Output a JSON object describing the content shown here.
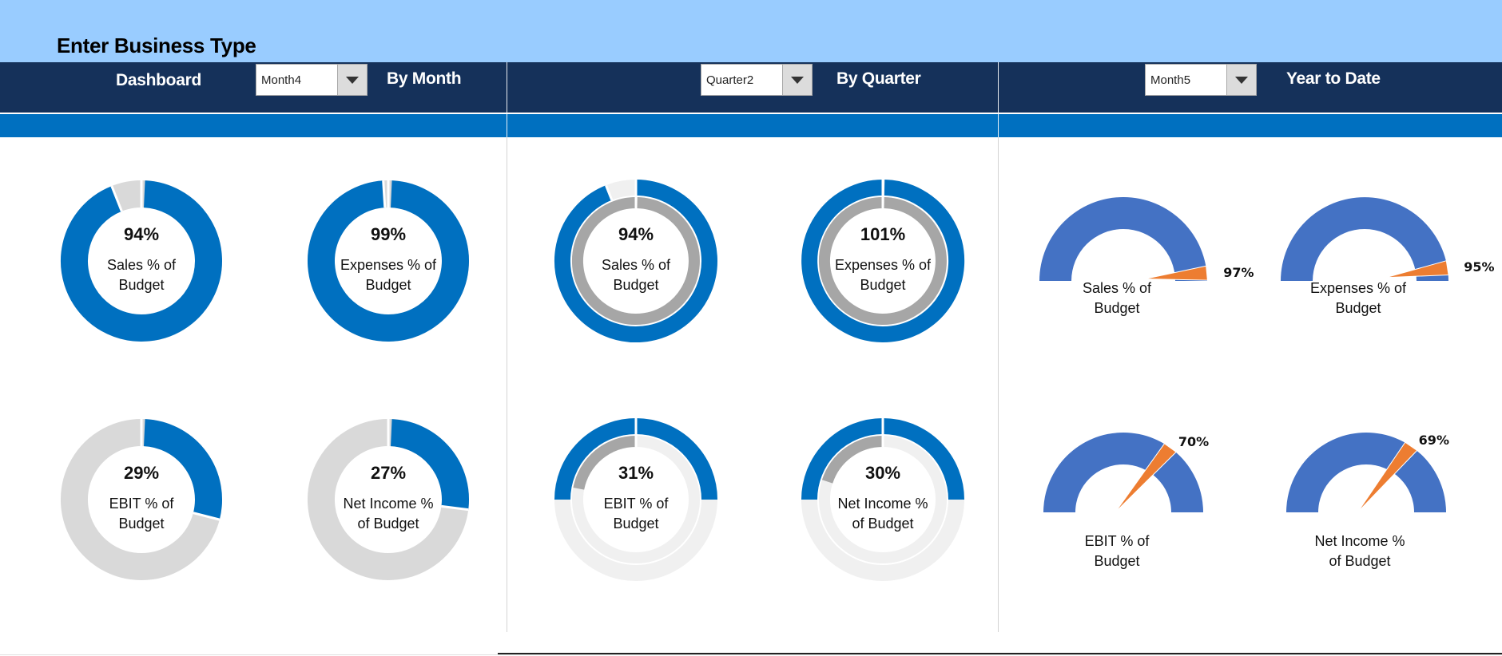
{
  "header": {
    "title": "Enter Business Type"
  },
  "nav": {
    "dashboard_label": "Dashboard",
    "by_month_label": "By Month",
    "by_quarter_label": "By Quarter",
    "ytd_label": "Year to Date"
  },
  "selectors": {
    "month": "Month4",
    "quarter": "Quarter2",
    "ytd_month": "Month5"
  },
  "colors": {
    "blue": "#0070c0",
    "light_grey": "#d9d9d9",
    "mid_grey": "#a6a6a6",
    "pale_grey": "#f0f0f0",
    "gauge_blue": "#4472c4",
    "needle": "#ed7d31"
  },
  "chart_data": [
    {
      "type": "pie",
      "variant": "donut",
      "section": "By Month",
      "items": [
        {
          "value": 94,
          "value_label": "94%",
          "label_lines": [
            "Sales % of",
            "Budget"
          ]
        },
        {
          "value": 99,
          "value_label": "99%",
          "label_lines": [
            "Expenses % of",
            "Budget"
          ]
        },
        {
          "value": 29,
          "value_label": "29%",
          "label_lines": [
            "EBIT % of",
            "Budget"
          ]
        },
        {
          "value": 27,
          "value_label": "27%",
          "label_lines": [
            "Net Income %",
            "of Budget"
          ]
        }
      ]
    },
    {
      "type": "pie",
      "variant": "double-donut",
      "section": "By Quarter",
      "items": [
        {
          "value": 94,
          "outer": 94,
          "inner": 100,
          "value_label": "94%",
          "label_lines": [
            "Sales % of",
            "Budget"
          ]
        },
        {
          "value": 101,
          "outer": 100,
          "inner": 100,
          "value_label": "101%",
          "label_lines": [
            "Expenses % of",
            "Budget"
          ]
        },
        {
          "value": 31,
          "outer": 25,
          "inner": 22,
          "value_label": "31%",
          "label_lines": [
            "EBIT % of",
            "Budget"
          ]
        },
        {
          "value": 30,
          "outer": 25,
          "inner": 20,
          "value_label": "30%",
          "label_lines": [
            "Net Income %",
            "of Budget"
          ]
        }
      ]
    },
    {
      "type": "gauge",
      "section": "Year to Date",
      "range": [
        0,
        100
      ],
      "items": [
        {
          "value": 97,
          "value_label": "97%",
          "label_lines": [
            "Sales % of",
            "Budget"
          ]
        },
        {
          "value": 95,
          "value_label": "95%",
          "label_lines": [
            "Expenses % of",
            "Budget"
          ]
        },
        {
          "value": 70,
          "value_label": "70%",
          "label_lines": [
            "EBIT % of",
            "Budget"
          ]
        },
        {
          "value": 69,
          "value_label": "69%",
          "label_lines": [
            "Net Income %",
            "of Budget"
          ]
        }
      ]
    }
  ]
}
